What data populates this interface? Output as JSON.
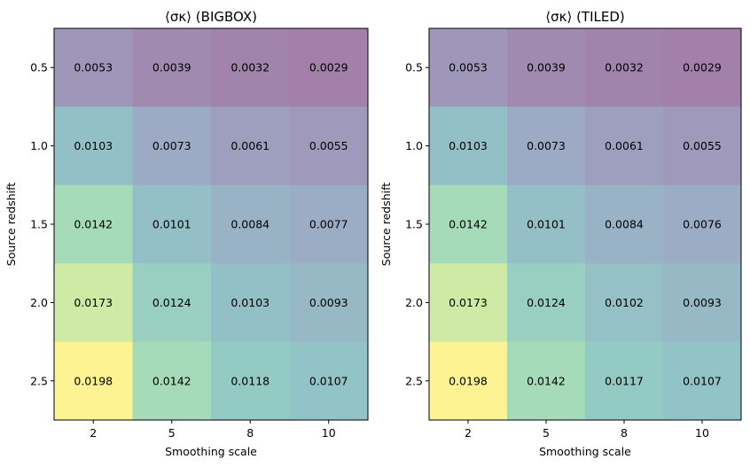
{
  "chart_data": [
    {
      "type": "heatmap",
      "title": "⟨σκ⟩ (BIGBOX)",
      "xlabel": "Smoothing scale",
      "ylabel": "Source redshift",
      "x_categories": [
        "2",
        "5",
        "8",
        "10"
      ],
      "y_categories": [
        "0.5",
        "1.0",
        "1.5",
        "2.0",
        "2.5"
      ],
      "values": [
        [
          0.0053,
          0.0039,
          0.0032,
          0.0029
        ],
        [
          0.0103,
          0.0073,
          0.0061,
          0.0055
        ],
        [
          0.0142,
          0.0101,
          0.0084,
          0.0077
        ],
        [
          0.0173,
          0.0124,
          0.0103,
          0.0093
        ],
        [
          0.0198,
          0.0142,
          0.0118,
          0.0107
        ]
      ],
      "labels": [
        [
          "0.0053",
          "0.0039",
          "0.0032",
          "0.0029"
        ],
        [
          "0.0103",
          "0.0073",
          "0.0061",
          "0.0055"
        ],
        [
          "0.0142",
          "0.0101",
          "0.0084",
          "0.0077"
        ],
        [
          "0.0173",
          "0.0124",
          "0.0103",
          "0.0093"
        ],
        [
          "0.0198",
          "0.0142",
          "0.0118",
          "0.0107"
        ]
      ]
    },
    {
      "type": "heatmap",
      "title": "⟨σκ⟩ (TILED)",
      "xlabel": "Smoothing scale",
      "ylabel": "Source redshift",
      "x_categories": [
        "2",
        "5",
        "8",
        "10"
      ],
      "y_categories": [
        "0.5",
        "1.0",
        "1.5",
        "2.0",
        "2.5"
      ],
      "values": [
        [
          0.0053,
          0.0039,
          0.0032,
          0.0029
        ],
        [
          0.0103,
          0.0073,
          0.0061,
          0.0055
        ],
        [
          0.0142,
          0.0101,
          0.0084,
          0.0076
        ],
        [
          0.0173,
          0.0124,
          0.0102,
          0.0093
        ],
        [
          0.0198,
          0.0142,
          0.0117,
          0.0107
        ]
      ],
      "labels": [
        [
          "0.0053",
          "0.0039",
          "0.0032",
          "0.0029"
        ],
        [
          "0.0103",
          "0.0073",
          "0.0061",
          "0.0055"
        ],
        [
          "0.0142",
          "0.0101",
          "0.0084",
          "0.0076"
        ],
        [
          "0.0173",
          "0.0124",
          "0.0102",
          "0.0093"
        ],
        [
          "0.0198",
          "0.0142",
          "0.0117",
          "0.0107"
        ]
      ]
    }
  ],
  "colormap": "viridis",
  "cell_opacity": 0.5
}
